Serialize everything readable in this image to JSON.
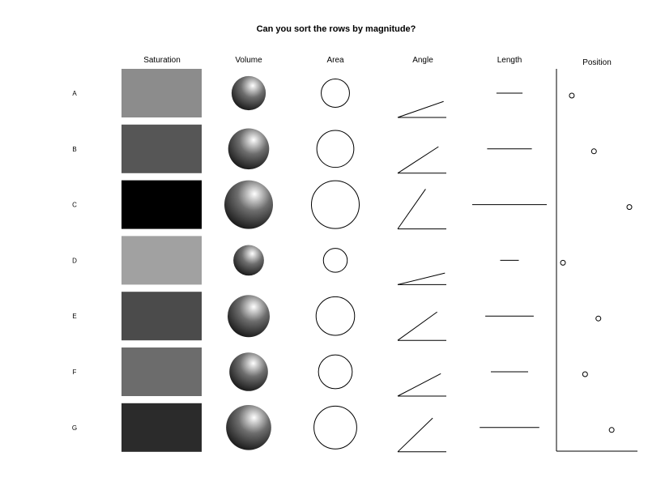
{
  "chart_data": {
    "type": "magnitude-encoding-grid",
    "title": "Can you sort the rows by magnitude?",
    "columns": [
      "Saturation",
      "Volume",
      "Area",
      "Angle",
      "Length",
      "Position"
    ],
    "rows": [
      "A",
      "B",
      "C",
      "D",
      "E",
      "F",
      "G"
    ],
    "values": [
      0.35,
      0.6,
      1.0,
      0.25,
      0.65,
      0.5,
      0.8
    ],
    "grid": false
  }
}
